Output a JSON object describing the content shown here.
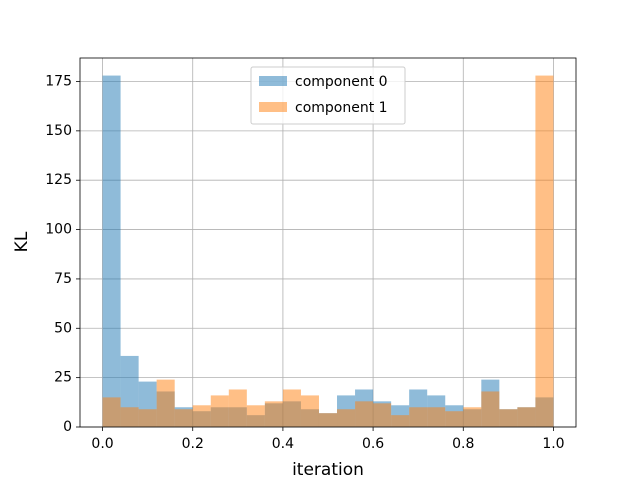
{
  "chart_data": {
    "type": "histogram",
    "x_label": "iteration",
    "y_label": "KL",
    "bins": [
      0,
      0.04,
      0.08,
      0.12,
      0.16,
      0.2,
      0.24,
      0.28,
      0.32,
      0.36,
      0.4,
      0.44,
      0.48,
      0.52,
      0.56,
      0.6,
      0.64,
      0.68,
      0.72,
      0.76,
      0.8,
      0.84,
      0.88,
      0.92,
      0.96,
      1.0
    ],
    "series": [
      {
        "name": "component 0",
        "color": "#1f77b4",
        "values": [
          178,
          36,
          23,
          18,
          10,
          8,
          10,
          10,
          6,
          12,
          13,
          9,
          7,
          16,
          19,
          13,
          11,
          19,
          16,
          11,
          9,
          24,
          9,
          10,
          15
        ]
      },
      {
        "name": "component 1",
        "color": "#ff7f0e",
        "values": [
          15,
          10,
          9,
          24,
          9,
          11,
          16,
          19,
          11,
          13,
          19,
          16,
          7,
          9,
          13,
          12,
          6,
          10,
          10,
          8,
          10,
          18,
          9,
          10,
          178
        ]
      }
    ],
    "alpha": 0.5,
    "xlim": [
      -0.05,
      1.05
    ],
    "xticks": [
      {
        "value": 0,
        "label": "0.0"
      },
      0.2,
      0.4,
      0.6,
      0.8,
      {
        "value": 1,
        "label": "1.0"
      }
    ],
    "ylim": [
      0,
      186.9
    ],
    "yticks": [
      0,
      25,
      50,
      75,
      100,
      125,
      150,
      175
    ],
    "grid": true,
    "legend": "upper center"
  }
}
